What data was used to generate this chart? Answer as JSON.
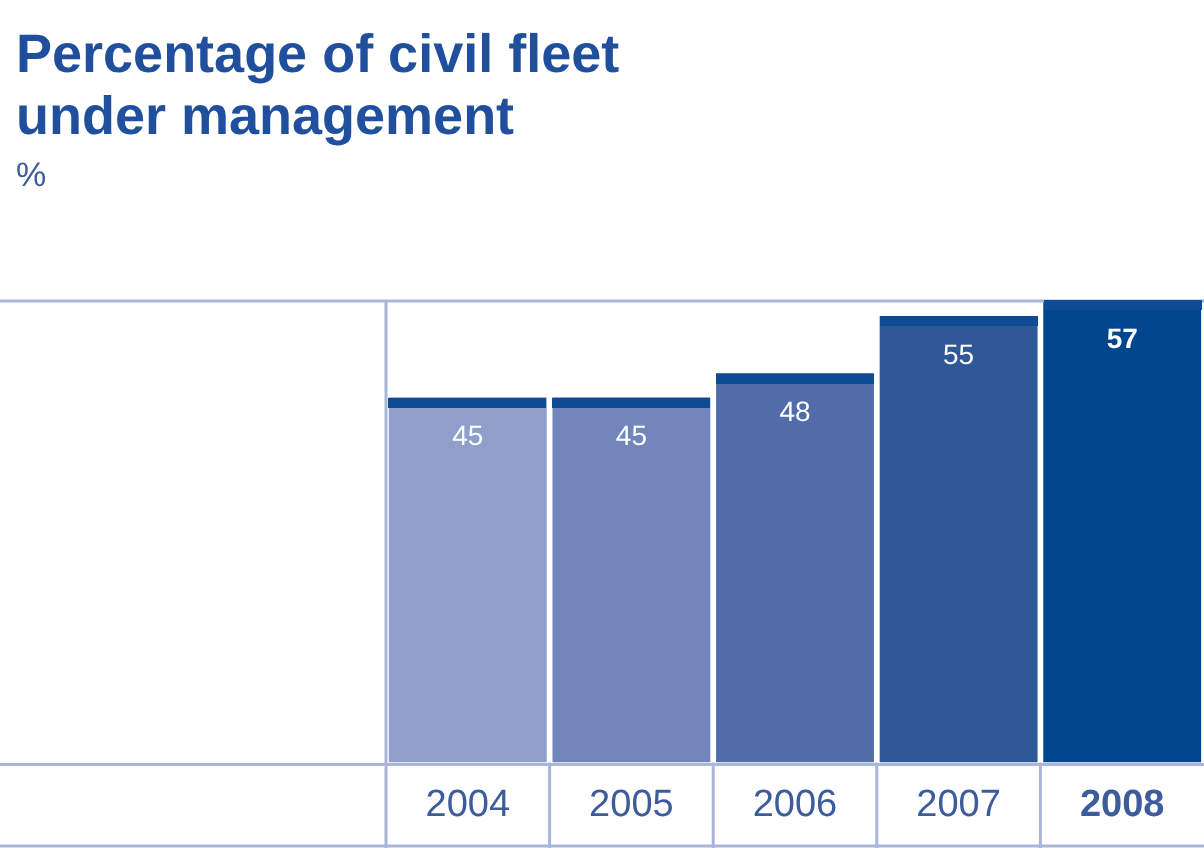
{
  "chart_data": {
    "type": "bar",
    "title": "Percentage of civil fleet under management",
    "subtitle": "%",
    "categories": [
      "2004",
      "2005",
      "2006",
      "2007",
      "2008"
    ],
    "values": [
      45,
      45,
      48,
      55,
      57
    ],
    "colors": [
      "#8f9fc9",
      "#7286bb",
      "#516ca9",
      "#2f5899",
      "#00468e"
    ],
    "data_labels": true,
    "tick_labels": "x",
    "legend": false,
    "grid": false
  }
}
